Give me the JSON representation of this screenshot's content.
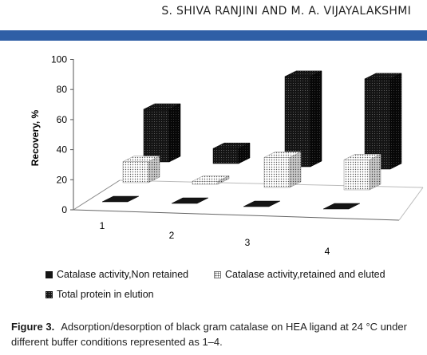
{
  "header": {
    "running_head": "S. SHIVA RANJINI AND M. A. VIJAYALAKSHMI"
  },
  "chart_data": {
    "type": "bar",
    "style": "3d",
    "ylabel": "Recovery, %",
    "ylim": [
      0,
      100
    ],
    "yticks": [
      "0",
      "20",
      "40",
      "60",
      "80",
      "100"
    ],
    "categories": [
      "1",
      "2",
      "3",
      "4"
    ],
    "series": [
      {
        "name": "Catalase activity,Non retained",
        "values": [
          1,
          1,
          1,
          1
        ],
        "pattern": "solid"
      },
      {
        "name": "Catalase activity,retained and eluted",
        "values": [
          14,
          2,
          20,
          20
        ],
        "pattern": "dots"
      },
      {
        "name": "Total protein in elution",
        "values": [
          35,
          10,
          60,
          60
        ],
        "pattern": "check"
      }
    ],
    "legend_position": "bottom"
  },
  "caption": {
    "label": "Figure 3.",
    "text": "Adsorption/desorption of black gram catalase on HEA ligand at 24 °C under different buffer conditions represented as 1–4."
  },
  "colors": {
    "rule": "#2f5fa6",
    "bar_dark": "#151515",
    "bar_light": "#ffffff"
  }
}
